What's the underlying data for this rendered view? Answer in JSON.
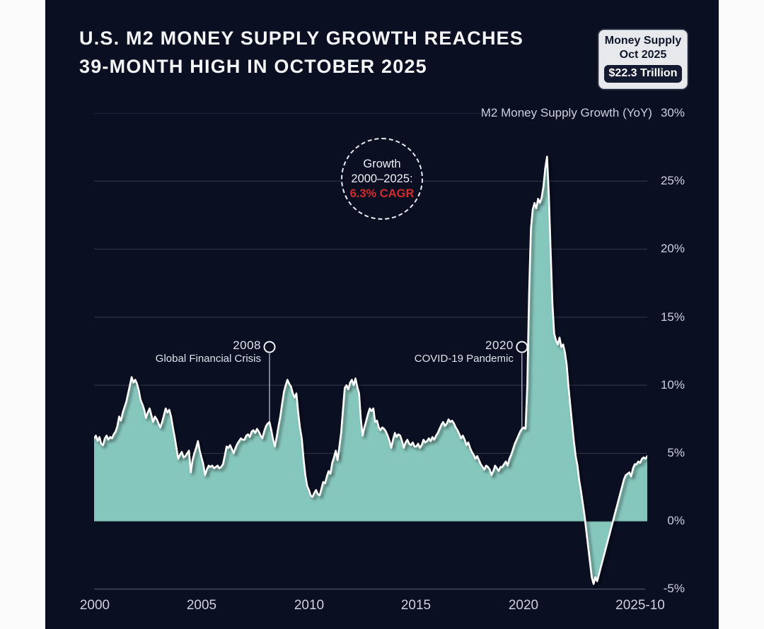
{
  "title": {
    "line1": "U.S. M2 MONEY SUPPLY GROWTH REACHES",
    "line2": "39-MONTH HIGH IN OCTOBER 2025"
  },
  "badge": {
    "line1": "Money Supply",
    "line2": "Oct 2025",
    "value": "$22.3 Trillion"
  },
  "series_label": "M2 Money Supply Growth (YoY)",
  "y_axis": {
    "ticks": [
      "30%",
      "25%",
      "20%",
      "15%",
      "10%",
      "5%",
      "0%",
      "-5%"
    ],
    "gridlines": [
      30,
      25,
      20,
      15,
      10,
      5,
      0,
      -5
    ]
  },
  "x_axis": {
    "ticks": [
      "2000",
      "2005",
      "2010",
      "2015",
      "2020",
      "2025-10"
    ]
  },
  "annotations": {
    "gfc": {
      "year": "2008",
      "label": "Global Financial Crisis",
      "month_index": 98
    },
    "covid": {
      "year": "2020",
      "label": "COVID-19 Pandemic",
      "month_index": 239
    },
    "cagr": {
      "line1": "Growth",
      "line2": "2000–2025:",
      "value": "6.3% CAGR"
    }
  },
  "colors": {
    "page_bg": "#fbfbfb",
    "card_bg": "#0a0f22",
    "area": "#86c7bd",
    "line": "#ffffff",
    "grid": "#343b4d",
    "axis_line": "#8b92a8",
    "text": "#ccd1dc",
    "title": "#f4f6fa",
    "accent_red": "#d22b2b",
    "badge_bg": "#e8e9ec",
    "badge_text": "#10162c",
    "pill_bg": "#141a30"
  },
  "chart_data": {
    "type": "area",
    "title": "U.S. M2 Money Supply Growth (YoY), monthly",
    "unit": "percent YoY",
    "x_start": "2000-01",
    "x_end": "2025-10",
    "frequency": "monthly",
    "ylim": [
      -5,
      30
    ],
    "legend_position": "top-right",
    "peak": {
      "date": "2021-02",
      "value": 26.8
    },
    "trough": {
      "date": "2023-04",
      "value": -4.6
    },
    "latest": {
      "date": "2025-10",
      "value": 4.8
    },
    "values": [
      6.1,
      6.3,
      5.9,
      6.2,
      5.7,
      5.6,
      6.1,
      6.3,
      6.0,
      6.2,
      6.1,
      6.4,
      6.6,
      7.0,
      7.7,
      7.4,
      8.0,
      8.4,
      8.8,
      9.4,
      10.0,
      10.6,
      10.2,
      10.4,
      10.1,
      9.6,
      8.9,
      8.6,
      8.2,
      7.6,
      8.0,
      8.3,
      7.8,
      7.3,
      7.7,
      7.5,
      7.2,
      6.9,
      7.3,
      7.8,
      8.3,
      8.0,
      8.2,
      7.7,
      6.9,
      6.2,
      5.4,
      4.6,
      4.9,
      5.1,
      4.7,
      4.8,
      5.0,
      5.2,
      3.6,
      4.5,
      5.0,
      5.4,
      5.9,
      5.2,
      4.7,
      4.2,
      3.4,
      3.8,
      4.1,
      4.0,
      4.1,
      3.9,
      4.0,
      4.1,
      3.9,
      4.0,
      4.2,
      4.8,
      5.5,
      5.4,
      5.6,
      5.3,
      5.0,
      5.4,
      5.7,
      5.9,
      6.1,
      6.0,
      6.0,
      6.3,
      6.4,
      6.2,
      6.6,
      6.7,
      6.5,
      6.8,
      6.6,
      6.3,
      6.1,
      6.6,
      7.0,
      7.2,
      7.3,
      6.7,
      6.0,
      5.5,
      6.2,
      7.0,
      7.7,
      8.6,
      9.5,
      10.0,
      10.4,
      10.1,
      9.9,
      9.4,
      9.1,
      9.4,
      8.0,
      6.9,
      6.1,
      4.6,
      3.4,
      2.6,
      2.3,
      1.9,
      1.8,
      2.1,
      2.3,
      2.0,
      1.9,
      2.4,
      2.9,
      2.8,
      3.3,
      3.7,
      3.5,
      4.3,
      4.7,
      5.2,
      4.5,
      5.5,
      6.5,
      8.2,
      9.8,
      10.0,
      9.7,
      10.2,
      10.4,
      10.0,
      10.5,
      9.9,
      9.4,
      7.5,
      6.3,
      6.9,
      7.4,
      7.9,
      8.3,
      8.1,
      8.3,
      7.3,
      7.4,
      6.9,
      6.7,
      6.9,
      6.8,
      6.6,
      6.3,
      5.9,
      5.4,
      6.0,
      6.5,
      6.2,
      6.4,
      6.3,
      5.9,
      5.4,
      5.8,
      6.0,
      5.7,
      5.6,
      5.8,
      5.5,
      5.5,
      5.7,
      5.4,
      5.6,
      6.0,
      5.8,
      5.9,
      6.1,
      5.9,
      6.2,
      6.0,
      6.3,
      6.5,
      6.8,
      7.1,
      7.3,
      7.0,
      7.2,
      7.5,
      7.3,
      7.4,
      7.2,
      6.9,
      6.7,
      6.4,
      6.1,
      6.3,
      6.0,
      5.6,
      5.8,
      5.4,
      5.1,
      4.9,
      4.6,
      4.8,
      4.5,
      4.2,
      4.0,
      3.8,
      4.1,
      4.0,
      3.8,
      3.4,
      3.7,
      4.1,
      3.9,
      3.7,
      4.0,
      4.0,
      4.2,
      4.4,
      4.1,
      4.6,
      4.9,
      5.3,
      5.7,
      6.0,
      6.3,
      6.6,
      6.8,
      6.9,
      6.8,
      10.0,
      16.9,
      21.5,
      22.9,
      23.4,
      23.0,
      23.7,
      23.4,
      23.8,
      24.6,
      25.9,
      26.8,
      24.0,
      20.0,
      16.0,
      13.8,
      13.3,
      13.0,
      13.5,
      12.8,
      13.0,
      12.4,
      11.5,
      9.9,
      8.5,
      7.2,
      5.9,
      4.8,
      4.1,
      3.0,
      2.2,
      1.3,
      0.4,
      -0.8,
      -1.9,
      -3.0,
      -4.1,
      -4.6,
      -4.1,
      -4.4,
      -3.9,
      -3.4,
      -2.9,
      -2.4,
      -1.9,
      -1.4,
      -0.9,
      -0.4,
      0.1,
      0.6,
      1.1,
      1.6,
      2.1,
      2.6,
      3.1,
      3.4,
      3.5,
      3.6,
      3.3,
      3.9,
      4.2,
      4.2,
      4.4,
      4.3,
      4.6,
      4.7,
      4.6,
      4.8
    ]
  }
}
